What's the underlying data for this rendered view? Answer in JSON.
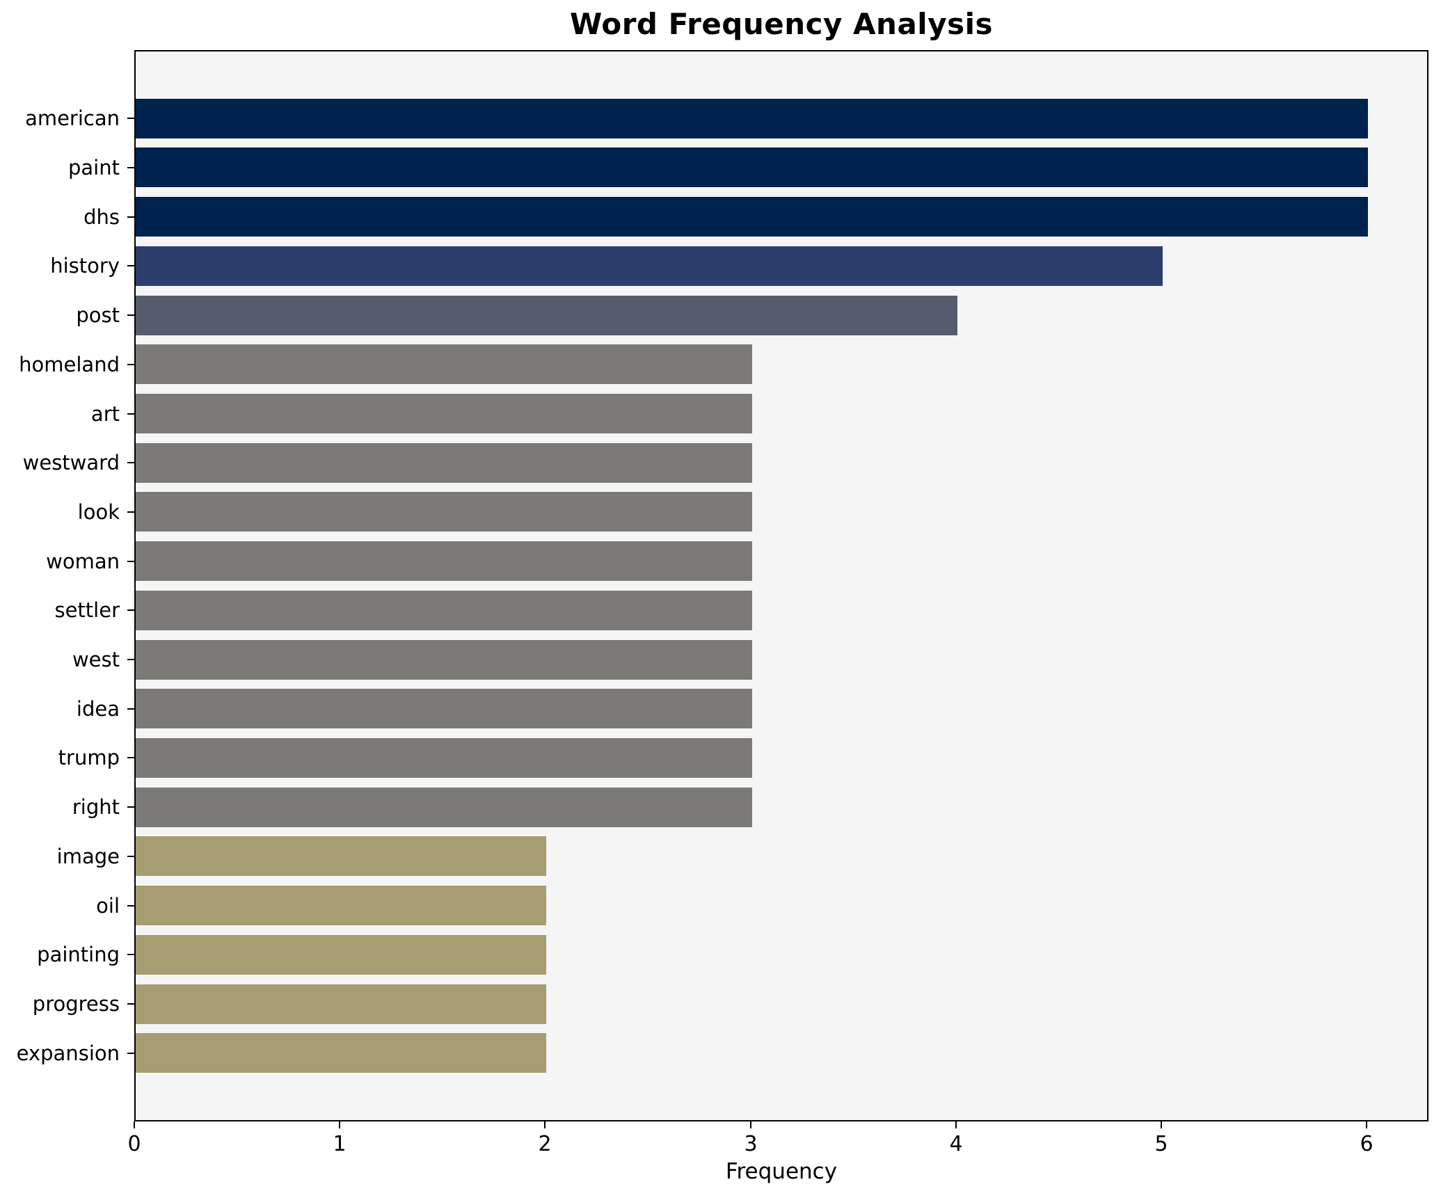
{
  "chart_data": {
    "type": "bar",
    "orientation": "horizontal",
    "title": "Word Frequency Analysis",
    "xlabel": "Frequency",
    "ylabel": "",
    "xlim": [
      0,
      6.3
    ],
    "x_ticks": [
      0,
      1,
      2,
      3,
      4,
      5,
      6
    ],
    "grid": false,
    "legend": "none",
    "categories": [
      "american",
      "paint",
      "dhs",
      "history",
      "post",
      "homeland",
      "art",
      "westward",
      "look",
      "woman",
      "settler",
      "west",
      "idea",
      "trump",
      "right",
      "image",
      "oil",
      "painting",
      "progress",
      "expansion"
    ],
    "values": [
      6,
      6,
      6,
      5,
      4,
      3,
      3,
      3,
      3,
      3,
      3,
      3,
      3,
      3,
      3,
      2,
      2,
      2,
      2,
      2
    ],
    "bar_colors": [
      "#00224e",
      "#00224e",
      "#00224e",
      "#2c3e6c",
      "#555c6e",
      "#7b7a77",
      "#7b7a77",
      "#7b7a77",
      "#7b7a77",
      "#7b7a77",
      "#7b7a77",
      "#7b7a77",
      "#7b7a77",
      "#7b7a77",
      "#7b7a77",
      "#a69d72",
      "#a69d72",
      "#a69d72",
      "#a69d72",
      "#a69d72"
    ],
    "colors": {
      "figure_background": "#ffffff",
      "plot_background": "#f5f5f6",
      "spine": "#000000",
      "text": "#000000"
    }
  }
}
